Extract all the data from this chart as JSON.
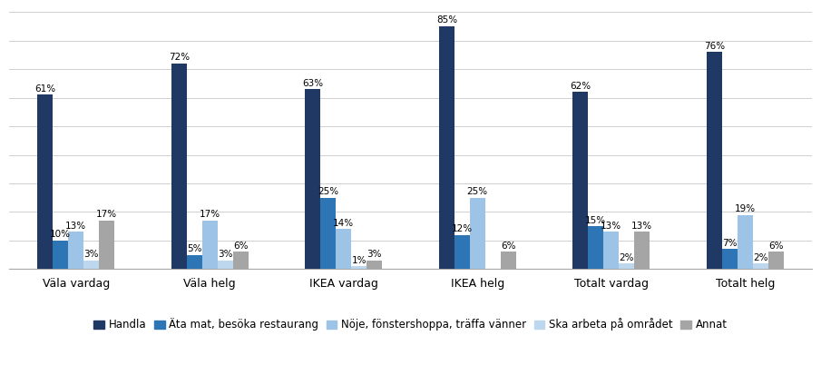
{
  "categories": [
    "Väla vardag",
    "Väla helg",
    "IKEA vardag",
    "IKEA helg",
    "Totalt vardag",
    "Totalt helg"
  ],
  "series": {
    "Handla": [
      61,
      72,
      63,
      85,
      62,
      76
    ],
    "Äta mat, besöka restaurang": [
      10,
      5,
      25,
      12,
      15,
      7
    ],
    "Nöje, fönstershoppa, träffa vänner": [
      13,
      17,
      14,
      25,
      13,
      19
    ],
    "Ska arbeta på området": [
      3,
      3,
      1,
      0,
      2,
      2
    ],
    "Annat": [
      17,
      6,
      3,
      6,
      13,
      6
    ]
  },
  "colors": {
    "Handla": "#1F3864",
    "Äta mat, besöka restaurang": "#2E75B6",
    "Nöje, fönstershoppa, träffa vänner": "#9DC3E6",
    "Ska arbeta på området": "#BDD7EE",
    "Annat": "#A5A5A5"
  },
  "bar_width": 0.115,
  "ylim": [
    0,
    92
  ],
  "label_fontsize": 7.5,
  "legend_fontsize": 8.5,
  "tick_fontsize": 9,
  "background_color": "#ffffff",
  "grid_color": "#c8c8c8"
}
